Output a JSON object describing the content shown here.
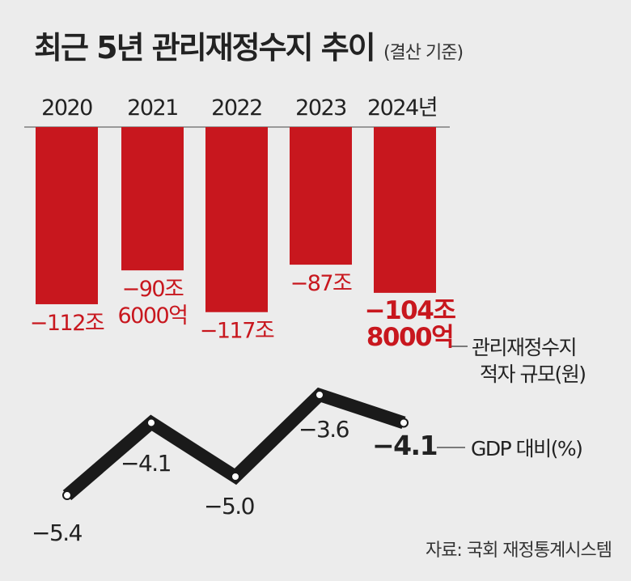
{
  "chart_data": [
    {
      "type": "bar",
      "title": "최근 5년 관리재정수지 추이",
      "subtitle": "(결산 기준)",
      "categories": [
        "2020",
        "2021",
        "2022",
        "2023",
        "2024년"
      ],
      "values": [
        -112,
        -90.6,
        -117,
        -87,
        -104.8
      ],
      "labels": [
        [
          "−112조"
        ],
        [
          "−90조",
          "6000억"
        ],
        [
          "−117조"
        ],
        [
          "−87조"
        ],
        [
          "−104조",
          "8000억"
        ]
      ],
      "series_label": [
        "관리재정수지",
        "적자 규모(원)"
      ],
      "color": "#c8171e"
    },
    {
      "type": "line",
      "categories": [
        "2020",
        "2021",
        "2022",
        "2023",
        "2024"
      ],
      "values": [
        -5.4,
        -4.1,
        -5.0,
        -3.6,
        -4.1
      ],
      "labels": [
        "−5.4",
        "−4.1",
        "−5.0",
        "−3.6",
        "−4.1"
      ],
      "series_label": "GDP 대비(%)",
      "color": "#1a1a1a"
    }
  ],
  "source": "자료: 국회 재정통계시스템"
}
